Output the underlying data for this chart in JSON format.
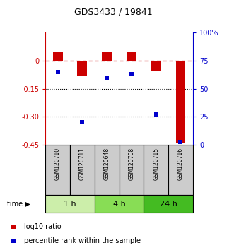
{
  "title": "GDS3433 / 19841",
  "samples": [
    "GSM120710",
    "GSM120711",
    "GSM120648",
    "GSM120708",
    "GSM120715",
    "GSM120716"
  ],
  "log10_ratio": [
    0.05,
    -0.08,
    0.05,
    0.05,
    -0.055,
    -0.44
  ],
  "percentile_rank": [
    65,
    20,
    60,
    63,
    27,
    3
  ],
  "left_ylim": [
    -0.45,
    0.15
  ],
  "right_ylim": [
    0,
    100
  ],
  "left_yticks": [
    0,
    -0.15,
    -0.3,
    -0.45
  ],
  "right_yticks": [
    0,
    25,
    50,
    75,
    100
  ],
  "left_ytick_labels": [
    "0",
    "-0.15",
    "-0.30",
    "-0.45"
  ],
  "right_ytick_labels": [
    "0",
    "25",
    "50",
    "75",
    "100%"
  ],
  "bar_color": "#cc0000",
  "square_color": "#0000cc",
  "dashed_line_color": "#cc0000",
  "dotted_line_color": "#000000",
  "time_groups": [
    {
      "label": "1 h",
      "start": 0,
      "end": 2,
      "color": "#cceeaa"
    },
    {
      "label": "4 h",
      "start": 2,
      "end": 4,
      "color": "#88dd55"
    },
    {
      "label": "24 h",
      "start": 4,
      "end": 6,
      "color": "#44bb22"
    }
  ],
  "legend_entries": [
    {
      "label": "log10 ratio",
      "color": "#cc0000"
    },
    {
      "label": "percentile rank within the sample",
      "color": "#0000cc"
    }
  ],
  "sample_box_color": "#cccccc",
  "sample_box_edge": "#000000"
}
